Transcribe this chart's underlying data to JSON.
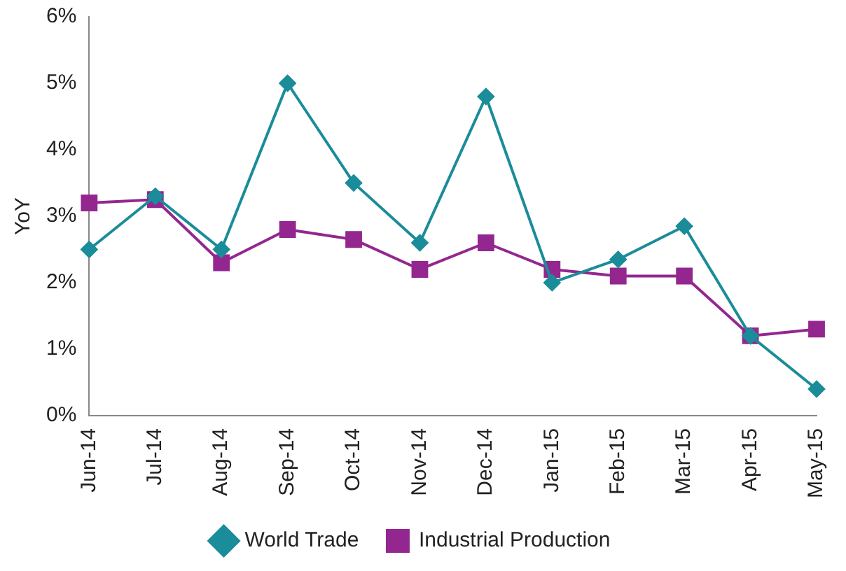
{
  "chart_data": {
    "type": "line",
    "ylabel": "YoY",
    "categories": [
      "Jun-14",
      "Jul-14",
      "Aug-14",
      "Sep-14",
      "Oct-14",
      "Nov-14",
      "Dec-14",
      "Jan-15",
      "Feb-15",
      "Mar-15",
      "Apr-15",
      "May-15"
    ],
    "series": [
      {
        "name": "World Trade",
        "color": "#1b8c99",
        "marker": "diamond",
        "values": [
          2.5,
          3.3,
          2.5,
          5.0,
          3.5,
          2.6,
          4.8,
          2.0,
          2.35,
          2.85,
          1.2,
          0.4
        ]
      },
      {
        "name": "Industrial Production",
        "color": "#93278f",
        "marker": "square",
        "values": [
          3.2,
          3.25,
          2.3,
          2.8,
          2.65,
          2.2,
          2.6,
          2.2,
          2.1,
          2.1,
          1.2,
          1.3
        ]
      }
    ],
    "ylim": [
      0,
      6
    ],
    "yticks": [
      {
        "value": 0,
        "label": "0%"
      },
      {
        "value": 1,
        "label": "1%"
      },
      {
        "value": 2,
        "label": "2%"
      },
      {
        "value": 3,
        "label": "3%"
      },
      {
        "value": 4,
        "label": "4%"
      },
      {
        "value": 5,
        "label": "5%"
      },
      {
        "value": 6,
        "label": "6%"
      }
    ],
    "grid": false,
    "legend": "bottom",
    "line_style": "solid"
  }
}
